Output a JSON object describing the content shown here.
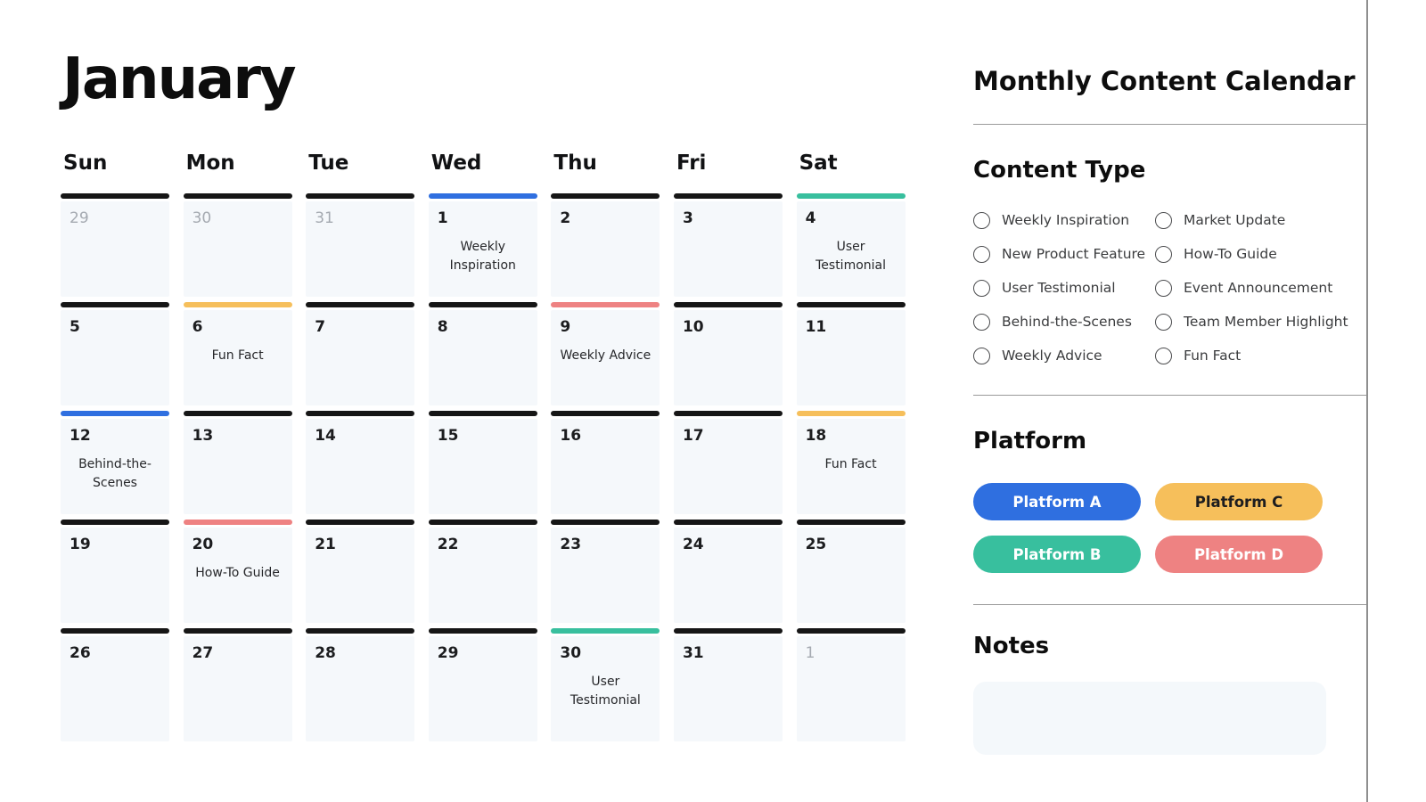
{
  "calendar": {
    "title": "January",
    "weekdays": [
      "Sun",
      "Mon",
      "Tue",
      "Wed",
      "Thu",
      "Fri",
      "Sat"
    ],
    "weeks": [
      [
        {
          "num": "29",
          "muted": true,
          "bar": "black"
        },
        {
          "num": "30",
          "muted": true,
          "bar": "black"
        },
        {
          "num": "31",
          "muted": true,
          "bar": "black"
        },
        {
          "num": "1",
          "muted": false,
          "bar": "blue",
          "event": "Weekly Inspiration"
        },
        {
          "num": "2",
          "muted": false,
          "bar": "black"
        },
        {
          "num": "3",
          "muted": false,
          "bar": "black"
        },
        {
          "num": "4",
          "muted": false,
          "bar": "teal",
          "event": "User Testimonial"
        }
      ],
      [
        {
          "num": "5",
          "muted": false,
          "bar": "black"
        },
        {
          "num": "6",
          "muted": false,
          "bar": "yellow",
          "event": "Fun Fact"
        },
        {
          "num": "7",
          "muted": false,
          "bar": "black"
        },
        {
          "num": "8",
          "muted": false,
          "bar": "black"
        },
        {
          "num": "9",
          "muted": false,
          "bar": "red",
          "event": "Weekly Advice"
        },
        {
          "num": "10",
          "muted": false,
          "bar": "black"
        },
        {
          "num": "11",
          "muted": false,
          "bar": "black"
        }
      ],
      [
        {
          "num": "12",
          "muted": false,
          "bar": "blue",
          "event": "Behind-the-Scenes"
        },
        {
          "num": "13",
          "muted": false,
          "bar": "black"
        },
        {
          "num": "14",
          "muted": false,
          "bar": "black"
        },
        {
          "num": "15",
          "muted": false,
          "bar": "black"
        },
        {
          "num": "16",
          "muted": false,
          "bar": "black"
        },
        {
          "num": "17",
          "muted": false,
          "bar": "black"
        },
        {
          "num": "18",
          "muted": false,
          "bar": "yellow",
          "event": "Fun Fact"
        }
      ],
      [
        {
          "num": "19",
          "muted": false,
          "bar": "black"
        },
        {
          "num": "20",
          "muted": false,
          "bar": "red",
          "event": "How-To Guide"
        },
        {
          "num": "21",
          "muted": false,
          "bar": "black"
        },
        {
          "num": "22",
          "muted": false,
          "bar": "black"
        },
        {
          "num": "23",
          "muted": false,
          "bar": "black"
        },
        {
          "num": "24",
          "muted": false,
          "bar": "black"
        },
        {
          "num": "25",
          "muted": false,
          "bar": "black"
        }
      ],
      [
        {
          "num": "26",
          "muted": false,
          "bar": "black"
        },
        {
          "num": "27",
          "muted": false,
          "bar": "black"
        },
        {
          "num": "28",
          "muted": false,
          "bar": "black"
        },
        {
          "num": "29",
          "muted": false,
          "bar": "black"
        },
        {
          "num": "30",
          "muted": false,
          "bar": "teal",
          "event": "User Testimonial"
        },
        {
          "num": "31",
          "muted": false,
          "bar": "black"
        },
        {
          "num": "1",
          "muted": true,
          "bar": "black"
        }
      ]
    ]
  },
  "panel": {
    "title": "Monthly Content Calendar",
    "content_type": {
      "heading": "Content Type",
      "options_left": [
        "Weekly Inspiration",
        "New Product Feature",
        "User Testimonial",
        "Behind-the-Scenes",
        "Weekly Advice"
      ],
      "options_right": [
        "Market Update",
        "How-To Guide",
        "Event Announcement",
        "Team Member Highlight",
        "Fun Fact"
      ]
    },
    "platform": {
      "heading": "Platform",
      "buttons": [
        {
          "label": "Platform A",
          "bg": "#2f6fe0",
          "fg": "#ffffff"
        },
        {
          "label": "Platform C",
          "bg": "#f6bf5b",
          "fg": "#1d1d1f"
        },
        {
          "label": "Platform B",
          "bg": "#38bf9e",
          "fg": "#ffffff"
        },
        {
          "label": "Platform D",
          "bg": "#ee8282",
          "fg": "#ffffff"
        }
      ]
    },
    "notes": {
      "heading": "Notes"
    }
  },
  "colors": {
    "bar_black": "#161616",
    "bar_blue": "#2f6fe0",
    "bar_teal": "#38bf9e",
    "bar_yellow": "#f6bf5b",
    "bar_red": "#ee8282",
    "cell_bg": "#f5f8fb",
    "muted_day": "#a5aab1",
    "divider": "#9a9a9a"
  }
}
